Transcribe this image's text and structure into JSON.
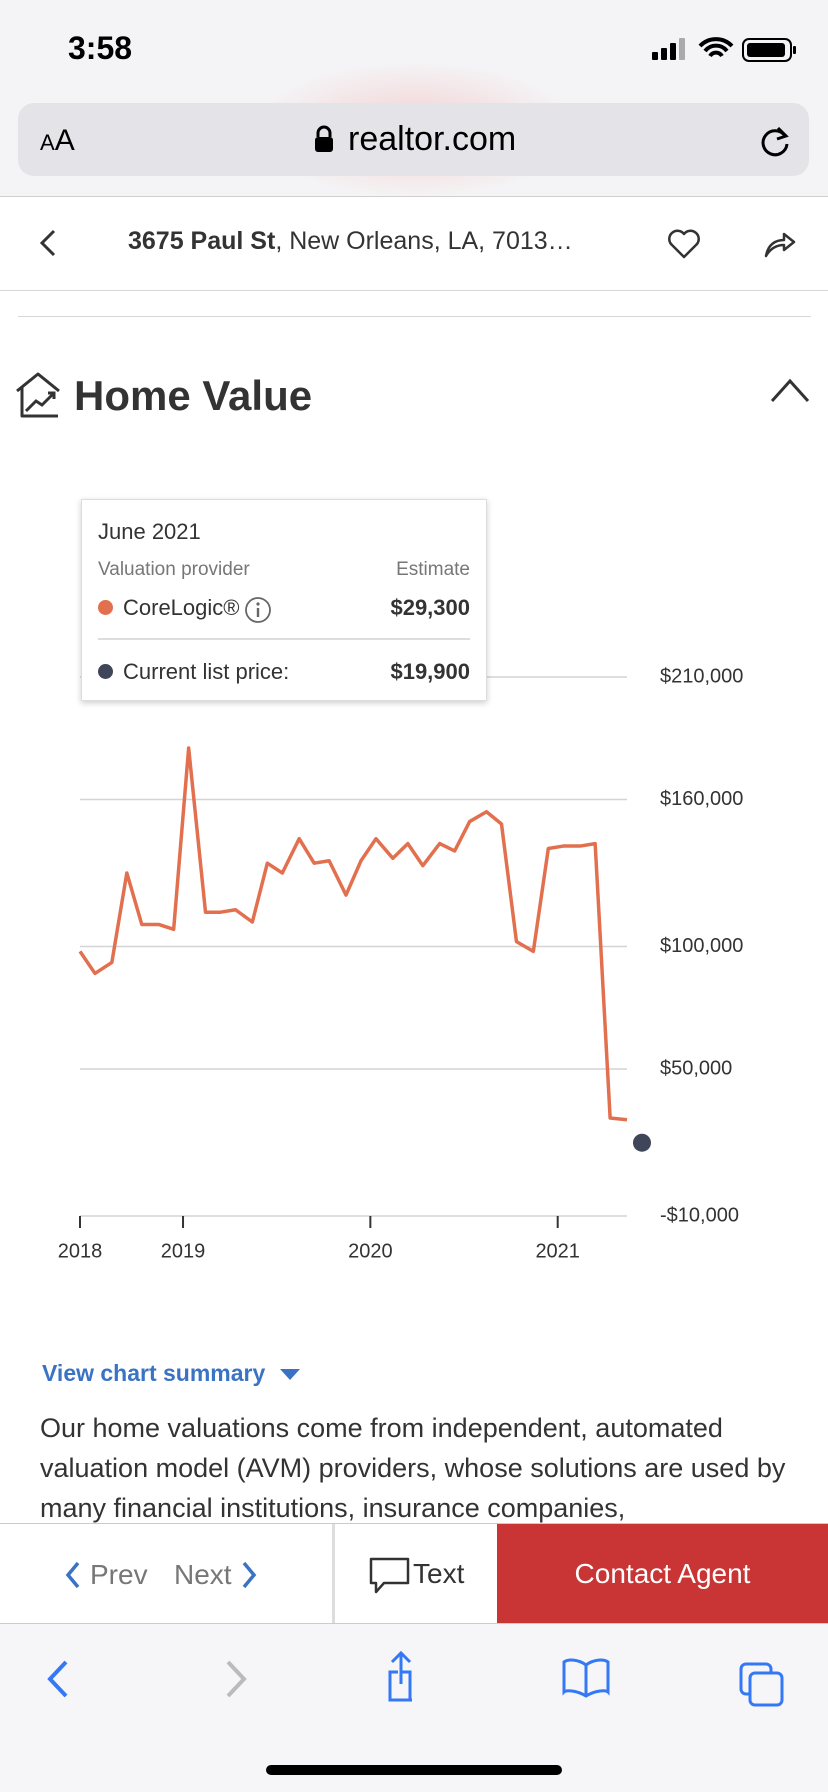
{
  "status_bar": {
    "time": "3:58"
  },
  "browser": {
    "text_size_small": "A",
    "text_size_large": "A",
    "url": "realtor.com"
  },
  "header": {
    "address_bold": "3675 Paul St",
    "address_rest": ", New Orleans, LA, 7013…"
  },
  "section": {
    "title": "Home Value"
  },
  "chart_data": {
    "type": "line",
    "tooltip": {
      "title": "June 2021",
      "provider_header": "Valuation provider",
      "estimate_header": "Estimate"
    },
    "series": [
      {
        "name": "CoreLogic®",
        "color": "#e2704f",
        "x": [
          2018.45,
          2018.53,
          2018.62,
          2018.7,
          2018.78,
          2018.87,
          2018.95,
          2019.03,
          2019.12,
          2019.2,
          2019.28,
          2019.37,
          2019.45,
          2019.53,
          2019.62,
          2019.7,
          2019.78,
          2019.87,
          2019.95,
          2020.03,
          2020.12,
          2020.2,
          2020.28,
          2020.37,
          2020.45,
          2020.53,
          2020.62,
          2020.7,
          2020.78,
          2020.87,
          2020.95,
          2021.03,
          2021.12,
          2021.2,
          2021.28,
          2021.37
        ],
        "values": [
          98000,
          89000,
          93500,
          130000,
          109000,
          109000,
          107000,
          181000,
          114000,
          114000,
          115000,
          110000,
          134000,
          130000,
          144000,
          134000,
          135000,
          121000,
          135000,
          144000,
          136000,
          142000,
          133000,
          142000,
          139000,
          151000,
          155000,
          150000,
          102000,
          98000,
          140000,
          141000,
          141000,
          142000,
          30000,
          29300
        ],
        "value_labels": [
          null,
          null,
          null,
          null,
          null,
          null,
          null,
          null,
          null,
          null,
          null,
          null,
          null,
          null,
          null,
          null,
          null,
          null,
          null,
          null,
          null,
          null,
          null,
          null,
          null,
          null,
          null,
          null,
          null,
          null,
          null,
          null,
          null,
          null,
          null,
          "$29,300"
        ]
      },
      {
        "name": "Current list price:",
        "color": "#3f4659",
        "x": [
          2021.45
        ],
        "values": [
          19900
        ],
        "value_labels": [
          "$19,900"
        ]
      }
    ],
    "xlim": [
      2018.45,
      2021.37
    ],
    "xticks": [
      {
        "value": 2018.45,
        "label": "2018"
      },
      2019,
      2020,
      2021
    ],
    "ylim": [
      -10000,
      210000
    ],
    "yticks": [
      {
        "value": 210000,
        "label": "$210,000"
      },
      {
        "value": 160000,
        "label": "$160,000"
      },
      {
        "value": 100000,
        "label": "$100,000"
      },
      {
        "value": 50000,
        "label": "$50,000"
      },
      {
        "value": -10000,
        "label": "-$10,000"
      }
    ],
    "grid": true
  },
  "summary": {
    "link": "View chart summary",
    "text": "Our home valuations come from independent, automated valuation model (AVM) providers, whose solutions are used by many financial institutions, insurance companies,"
  },
  "bottom_bar": {
    "prev": "Prev",
    "next": "Next",
    "text": "Text",
    "contact": "Contact Agent"
  }
}
